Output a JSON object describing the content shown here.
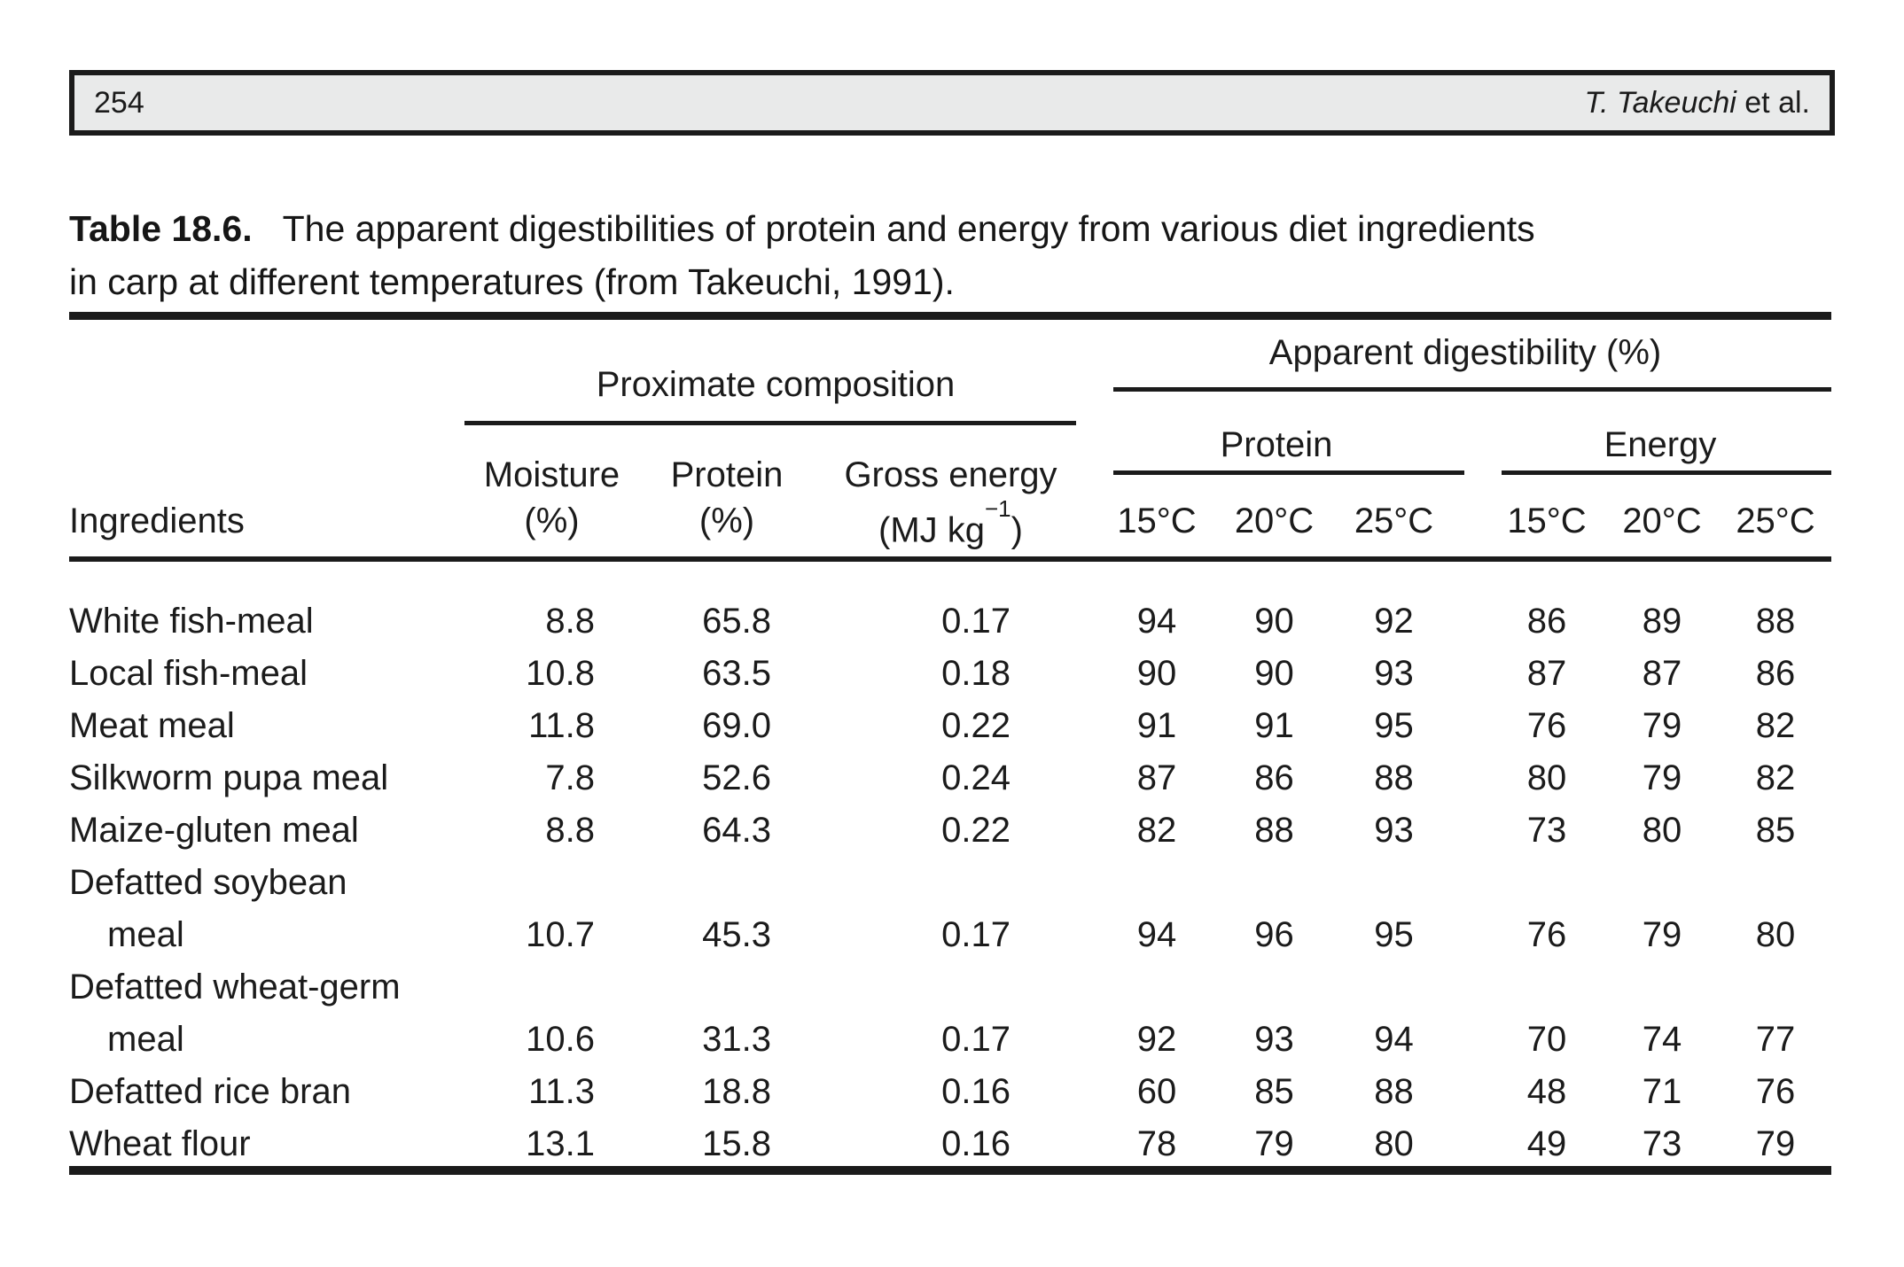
{
  "header_bar": {
    "page_number": "254",
    "authors_italic": "T. Takeuchi",
    "authors_regular": " et al."
  },
  "caption": {
    "label": "Table 18.6.",
    "line1": "The apparent digestibilities of protein and energy from various diet ingredients",
    "line2": "in carp at different temperatures (from Takeuchi, 1991)."
  },
  "table": {
    "groups": {
      "proximate": "Proximate composition",
      "apparent": "Apparent digestibility (%)",
      "protein": "Protein",
      "energy": "Energy"
    },
    "columns": {
      "ingredients": "Ingredients",
      "moisture_name": "Moisture",
      "moisture_unit": "(%)",
      "protein_name": "Protein",
      "protein_unit": "(%)",
      "gross_name": "Gross energy",
      "gross_unit_pre": "(MJ kg",
      "gross_unit_sup": "−1",
      "gross_unit_post": ")",
      "protein_temps": [
        "15°C",
        "20°C",
        "25°C"
      ],
      "energy_temps": [
        "15°C",
        "20°C",
        "25°C"
      ]
    },
    "rows": [
      {
        "label": "White fish-meal",
        "indent": false,
        "values": [
          "8.8",
          "65.8",
          "0.17",
          "94",
          "90",
          "92",
          "86",
          "89",
          "88"
        ]
      },
      {
        "label": "Local fish-meal",
        "indent": false,
        "values": [
          "10.8",
          "63.5",
          "0.18",
          "90",
          "90",
          "93",
          "87",
          "87",
          "86"
        ]
      },
      {
        "label": "Meat meal",
        "indent": false,
        "values": [
          "11.8",
          "69.0",
          "0.22",
          "91",
          "91",
          "95",
          "76",
          "79",
          "82"
        ]
      },
      {
        "label": "Silkworm pupa meal",
        "indent": false,
        "values": [
          "7.8",
          "52.6",
          "0.24",
          "87",
          "86",
          "88",
          "80",
          "79",
          "82"
        ]
      },
      {
        "label": "Maize-gluten meal",
        "indent": false,
        "values": [
          "8.8",
          "64.3",
          "0.22",
          "82",
          "88",
          "93",
          "73",
          "80",
          "85"
        ]
      },
      {
        "label": "Defatted soybean",
        "indent": false,
        "values": []
      },
      {
        "label": "meal",
        "indent": true,
        "values": [
          "10.7",
          "45.3",
          "0.17",
          "94",
          "96",
          "95",
          "76",
          "79",
          "80"
        ]
      },
      {
        "label": "Defatted wheat-germ",
        "indent": false,
        "values": []
      },
      {
        "label": "meal",
        "indent": true,
        "values": [
          "10.6",
          "31.3",
          "0.17",
          "92",
          "93",
          "94",
          "70",
          "74",
          "77"
        ]
      },
      {
        "label": "Defatted rice bran",
        "indent": false,
        "values": [
          "11.3",
          "18.8",
          "0.16",
          "60",
          "85",
          "88",
          "48",
          "71",
          "76"
        ]
      },
      {
        "label": "Wheat flour",
        "indent": false,
        "values": [
          "13.1",
          "15.8",
          "0.16",
          "78",
          "79",
          "80",
          "49",
          "73",
          "79"
        ]
      }
    ]
  }
}
